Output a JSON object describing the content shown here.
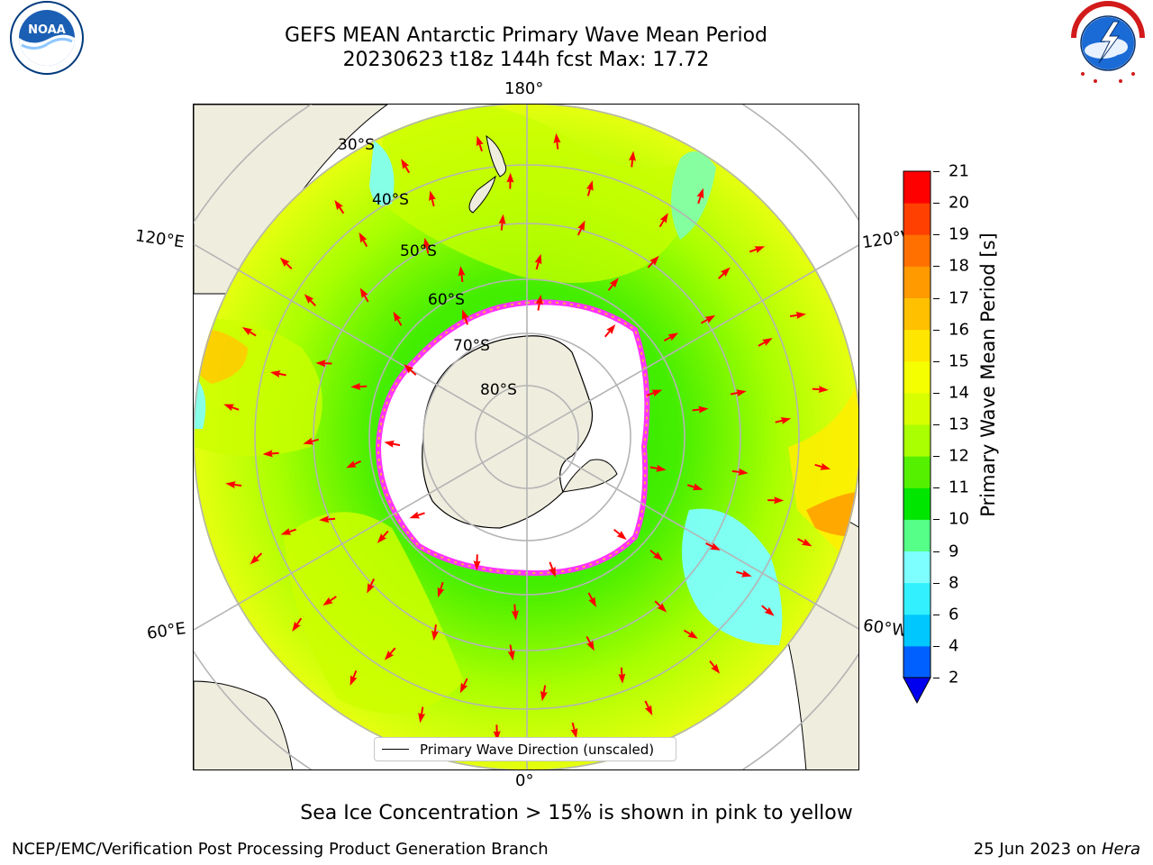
{
  "header": {
    "title_line1": "GEFS MEAN Antarctic Primary Wave Mean Period",
    "title_line2": "20230623 t18z 144h fcst   Max: 17.72"
  },
  "logos": {
    "left": "noaa-logo",
    "right": "national-weather-service-logo",
    "left_text": "NOAA",
    "right_text": "NATIONAL WEATHER SERVICE"
  },
  "map": {
    "projection": "south-polar-stereographic",
    "longitude_labels": {
      "top": "180°",
      "bottom": "0°",
      "upper_left": "120°E",
      "upper_right": "120°W",
      "lower_left": "60°E",
      "lower_right": "60°W"
    },
    "latitude_labels": [
      "30°S",
      "40°S",
      "50°S",
      "60°S",
      "70°S",
      "80°S"
    ],
    "legend_label": "Primary Wave Direction (unscaled)",
    "arrow_color": "#ff0000",
    "land_color": "#efedde",
    "sea_ice_note": "Sea Ice Concentration > 15% is shown in pink to yellow"
  },
  "colorbar": {
    "label": "Primary Wave Mean Period [s]",
    "ticks": [
      "2",
      "4",
      "6",
      "8",
      "9",
      "10",
      "11",
      "12",
      "13",
      "14",
      "15",
      "16",
      "17",
      "18",
      "19",
      "20",
      "21"
    ],
    "colors": [
      "#0060ff",
      "#00c8ff",
      "#33f0ff",
      "#7dffff",
      "#55ff88",
      "#00e600",
      "#55f000",
      "#aaff00",
      "#d8ff00",
      "#f5ff00",
      "#ffe600",
      "#ffc000",
      "#ff9a00",
      "#ff7000",
      "#ff4000",
      "#ff0000"
    ],
    "under_color": "#0000ee"
  },
  "footer": {
    "left": "NCEP/EMC/Verification Post Processing Product Generation Branch",
    "date": "25 Jun 2023 on",
    "host": "Hera"
  }
}
